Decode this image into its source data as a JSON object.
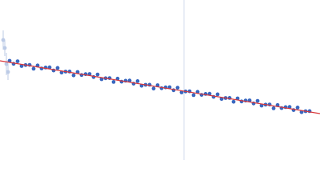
{
  "chart_data": {
    "type": "scatter",
    "xlim": [
      0,
      400
    ],
    "ylim": [
      0,
      200
    ],
    "vline": {
      "value": 230,
      "color": "#d3dbee"
    },
    "series": [
      {
        "color": "#bccbe6",
        "x": [
          4,
          6,
          8,
          10
        ],
        "values": [
          150,
          140,
          120,
          110
        ],
        "errors": [
          12,
          10,
          14,
          10
        ]
      },
      {
        "color": "#3a68c0",
        "x": [
          12,
          17,
          22,
          27,
          32,
          37,
          42,
          47,
          52,
          57,
          62,
          67,
          72,
          77,
          82,
          87,
          92,
          97,
          102,
          107,
          112,
          117,
          122,
          127,
          132,
          137,
          142,
          147,
          152,
          157,
          162,
          167,
          172,
          177,
          182,
          187,
          192,
          197,
          202,
          207,
          212,
          217,
          222,
          227,
          232,
          237,
          242,
          247,
          252,
          257,
          262,
          267,
          272,
          277,
          282,
          287,
          292,
          297,
          302,
          307,
          312,
          317,
          322,
          327,
          332,
          337,
          342,
          347,
          352,
          357,
          362,
          367,
          372,
          377,
          382,
          387
        ],
        "values": [
          124.0,
          120.2,
          123.4,
          117.5,
          118.7,
          118.9,
          114.1,
          118.2,
          114.4,
          115.6,
          115.8,
          111.9,
          115.1,
          109.3,
          110.5,
          110.6,
          105.8,
          110.0,
          106.2,
          107.3,
          107.5,
          103.7,
          106.9,
          101.0,
          102.2,
          102.4,
          97.6,
          101.7,
          97.9,
          99.1,
          99.3,
          95.4,
          98.6,
          92.8,
          94.0,
          94.1,
          89.3,
          93.5,
          89.7,
          90.8,
          91.0,
          87.2,
          90.4,
          84.5,
          85.7,
          85.9,
          81.1,
          85.2,
          81.4,
          82.6,
          82.8,
          78.9,
          82.1,
          76.3,
          77.5,
          77.6,
          72.8,
          77.0,
          73.2,
          74.3,
          74.5,
          70.7,
          73.9,
          68.0,
          69.2,
          69.4,
          64.6,
          68.7,
          64.9,
          66.1,
          66.3,
          62.4,
          65.6,
          59.8,
          61.0,
          61.1
        ]
      }
    ],
    "fit": {
      "color": "#d9363a",
      "x": [
        0,
        400
      ],
      "values": [
        124,
        58
      ]
    }
  }
}
